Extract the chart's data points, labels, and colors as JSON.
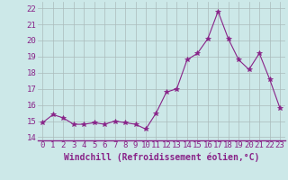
{
  "x": [
    0,
    1,
    2,
    3,
    4,
    5,
    6,
    7,
    8,
    9,
    10,
    11,
    12,
    13,
    14,
    15,
    16,
    17,
    18,
    19,
    20,
    21,
    22,
    23
  ],
  "y": [
    14.9,
    15.4,
    15.2,
    14.8,
    14.8,
    14.9,
    14.8,
    15.0,
    14.9,
    14.8,
    14.5,
    15.5,
    16.8,
    17.0,
    18.8,
    19.2,
    20.1,
    21.8,
    20.1,
    18.8,
    18.2,
    19.2,
    17.6,
    15.8
  ],
  "line_color": "#882288",
  "marker": "*",
  "marker_size": 4,
  "bg_color": "#cce8e8",
  "grid_color": "#aabbbb",
  "xlabel": "Windchill (Refroidissement éolien,°C)",
  "xlabel_color": "#882288",
  "ylabel_ticks": [
    14,
    15,
    16,
    17,
    18,
    19,
    20,
    21,
    22
  ],
  "xlim": [
    -0.5,
    23.5
  ],
  "ylim": [
    13.8,
    22.4
  ],
  "tick_label_color": "#882288",
  "tick_label_size": 6.5,
  "xlabel_size": 7.0
}
